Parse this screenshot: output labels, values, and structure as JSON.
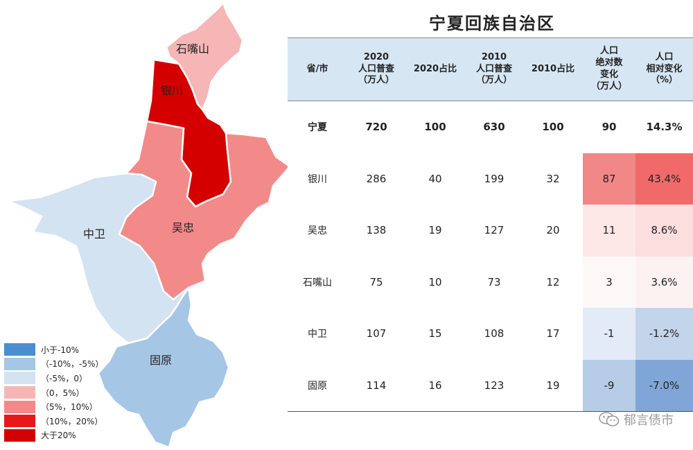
{
  "title": "宁夏回族自治区",
  "map": {
    "regions": [
      {
        "name": "石嘴山",
        "change_pct": 3.6,
        "color": "#f7b6b6"
      },
      {
        "name": "银川",
        "change_pct": 43.4,
        "color": "#d40000"
      },
      {
        "name": "吴忠",
        "change_pct": 8.6,
        "color": "#f28a8a"
      },
      {
        "name": "中卫",
        "change_pct": -1.2,
        "color": "#d4e3f1"
      },
      {
        "name": "固原",
        "change_pct": -7.0,
        "color": "#a6c6e6"
      }
    ]
  },
  "legend": [
    {
      "label": "小于-10%",
      "color": "#4a8ed0"
    },
    {
      "label": "（-10%，-5%）",
      "color": "#a6c6e6"
    },
    {
      "label": "（-5%，0）",
      "color": "#d4e3f1"
    },
    {
      "label": "（0，5%）",
      "color": "#f7b6b6"
    },
    {
      "label": "（5%，10%）",
      "color": "#f28a8a"
    },
    {
      "label": "（10%，20%）",
      "color": "#e81818"
    },
    {
      "label": "大于20%",
      "color": "#d40000"
    }
  ],
  "table": {
    "headers": [
      {
        "lines": [
          "省/市"
        ]
      },
      {
        "lines": [
          "2020",
          "人口普查",
          "（万人）"
        ]
      },
      {
        "lines": [
          "2020占比"
        ]
      },
      {
        "lines": [
          "2010",
          "人口普查",
          "（万人）"
        ]
      },
      {
        "lines": [
          "2010占比"
        ]
      },
      {
        "lines": [
          "人口",
          "绝对数",
          "变化",
          "（万人）"
        ]
      },
      {
        "lines": [
          "人口",
          "相对变化",
          "（%）"
        ]
      }
    ],
    "rows": [
      {
        "cells": [
          "宁夏",
          "720",
          "100",
          "630",
          "100",
          "90",
          "14.3%"
        ],
        "bold": true,
        "abs_bg": "#ffffff",
        "rel_bg": "#ffffff"
      },
      {
        "cells": [
          "银川",
          "286",
          "40",
          "199",
          "32",
          "87",
          "43.4%"
        ],
        "bold": false,
        "abs_bg": "#f28787",
        "rel_bg": "#f06a6a"
      },
      {
        "cells": [
          "吴忠",
          "138",
          "19",
          "127",
          "20",
          "11",
          "8.6%"
        ],
        "bold": false,
        "abs_bg": "#fde7e7",
        "rel_bg": "#fcdede"
      },
      {
        "cells": [
          "石嘴山",
          "75",
          "10",
          "73",
          "12",
          "3",
          "3.6%"
        ],
        "bold": false,
        "abs_bg": "#fdf8f8",
        "rel_bg": "#fcf2f2"
      },
      {
        "cells": [
          "中卫",
          "107",
          "15",
          "108",
          "17",
          "-1",
          "-1.2%"
        ],
        "bold": false,
        "abs_bg": "#e2ebf6",
        "rel_bg": "#c3d5eb"
      },
      {
        "cells": [
          "固原",
          "114",
          "16",
          "123",
          "19",
          "-9",
          "-7.0%"
        ],
        "bold": false,
        "abs_bg": "#b6cce7",
        "rel_bg": "#7fa6d6"
      }
    ]
  },
  "watermark": {
    "text": "郁言债市",
    "icon": "wechat-icon"
  }
}
